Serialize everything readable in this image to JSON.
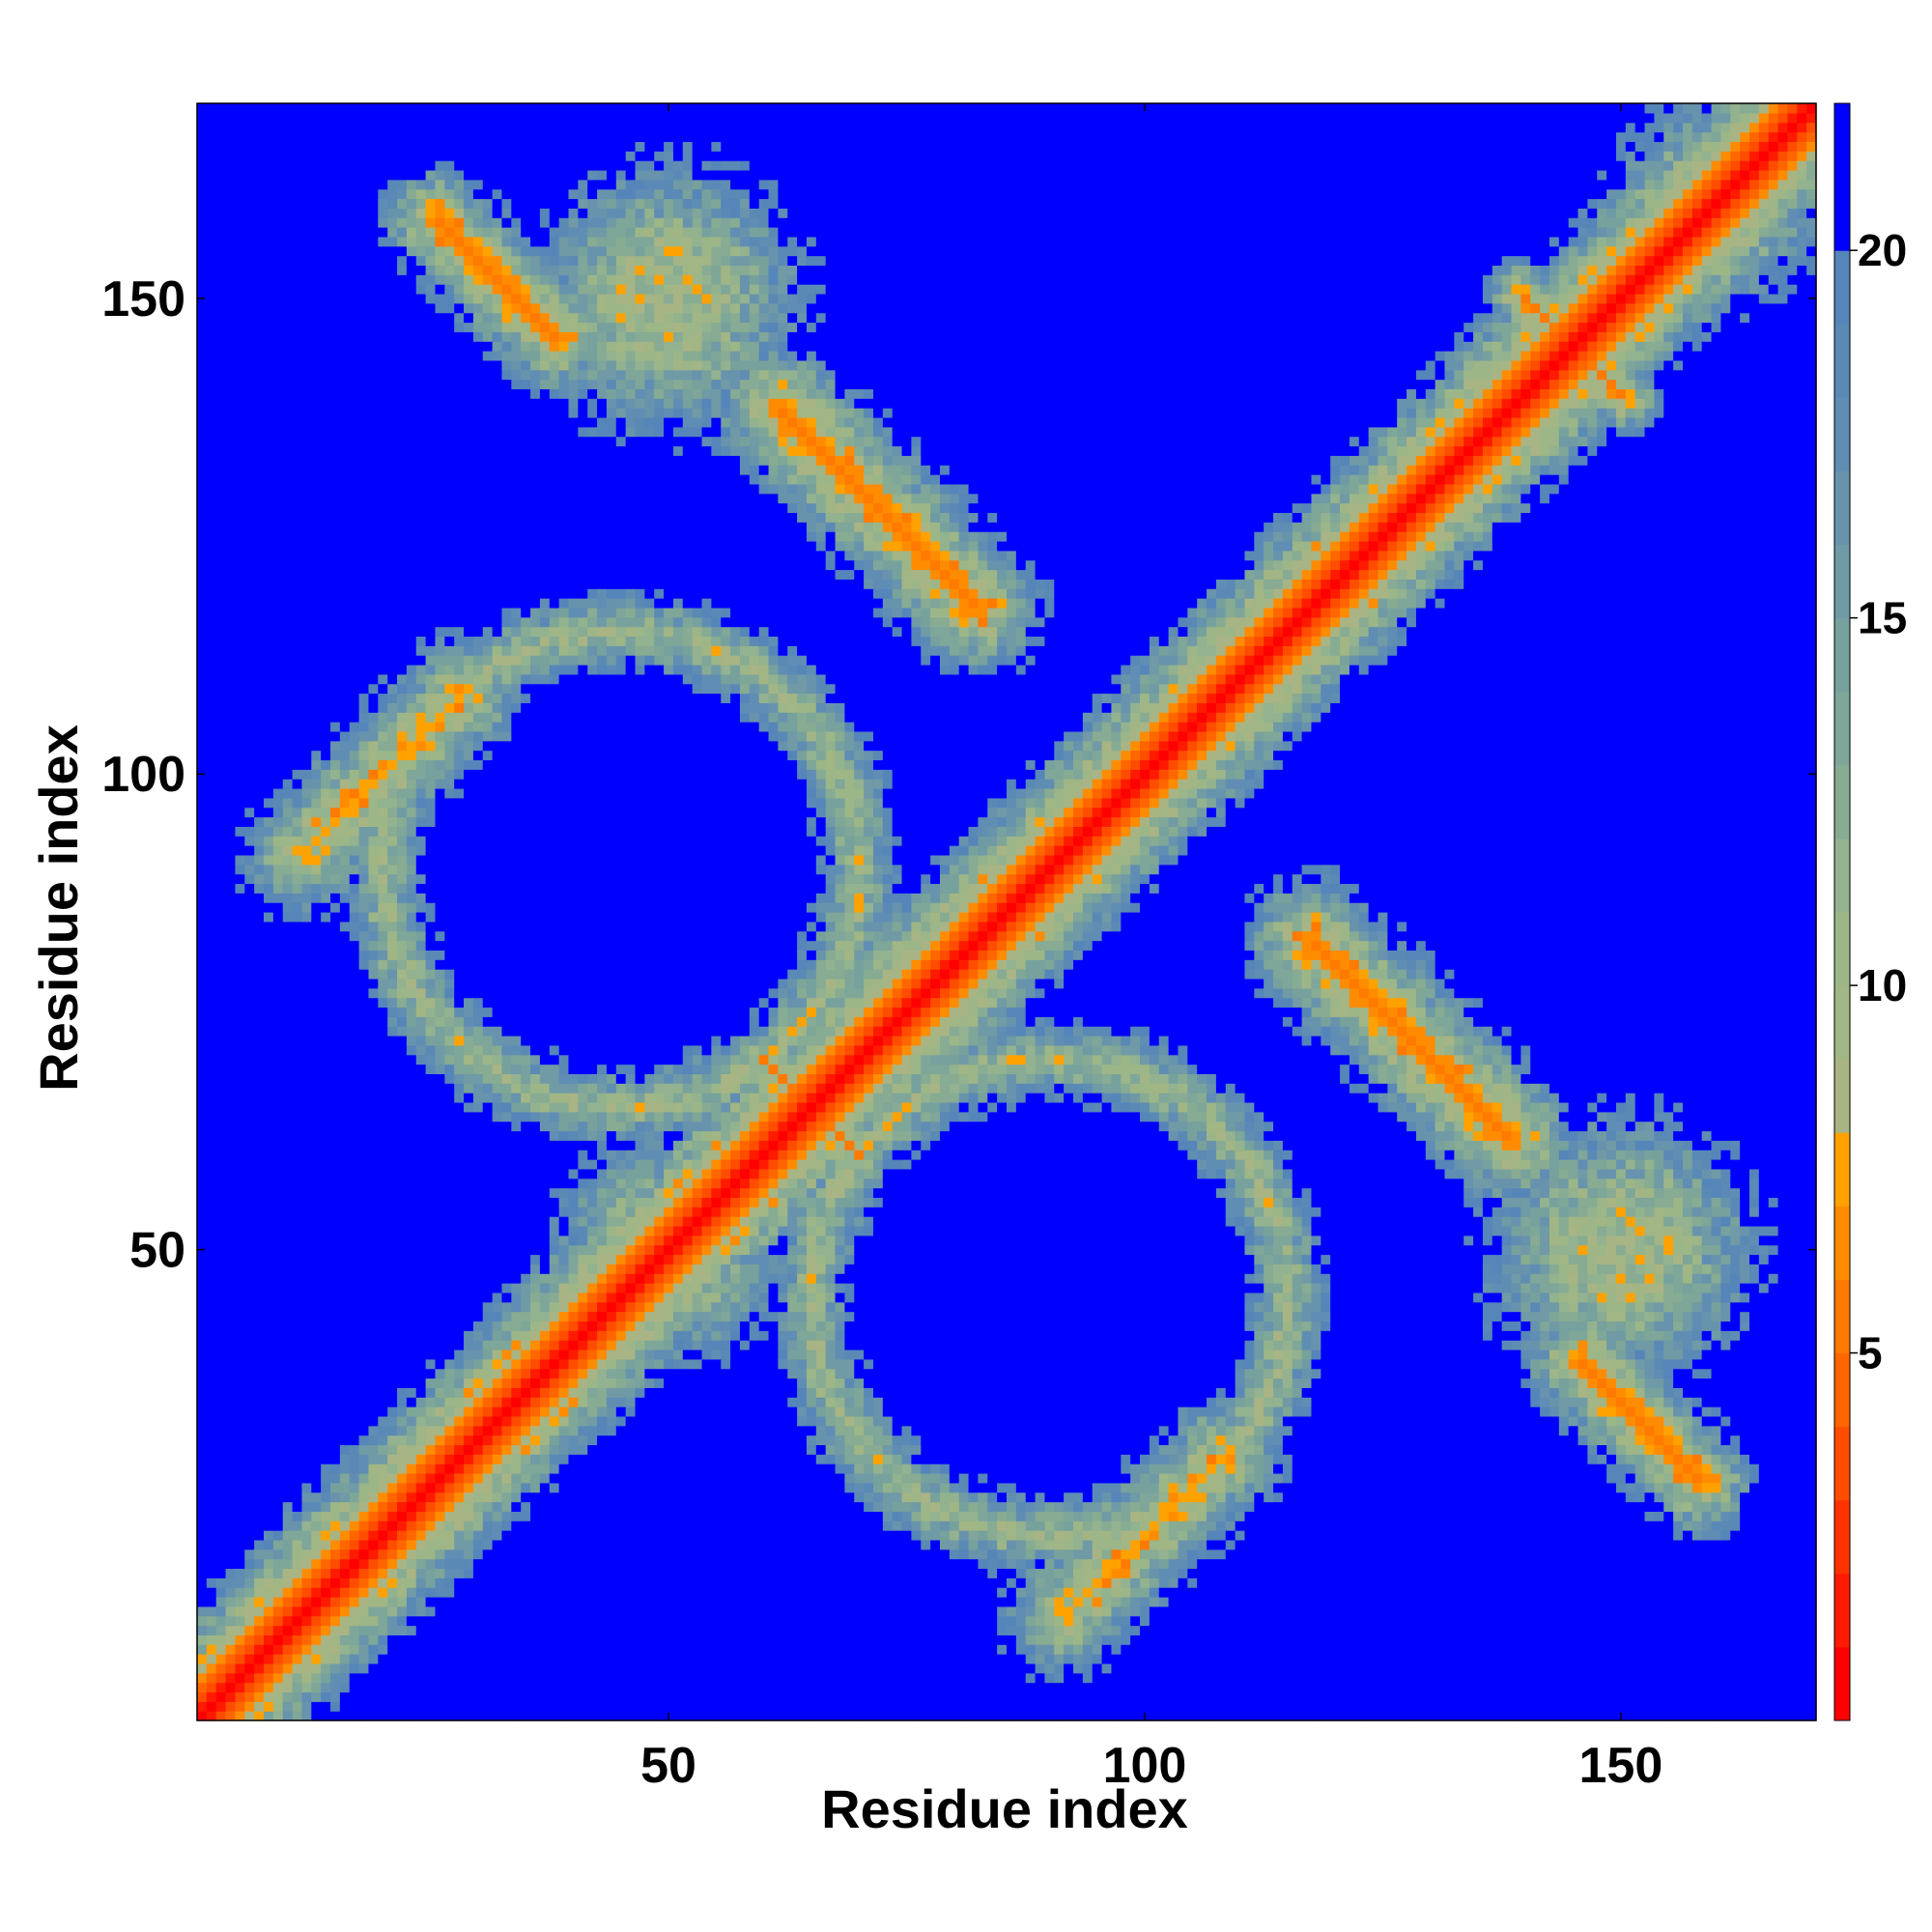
{
  "chart_data": {
    "type": "heatmap",
    "title": "",
    "xlabel": "Residue index",
    "ylabel": "Residue index",
    "n_residues": 170,
    "xlim": [
      1,
      170
    ],
    "ylim": [
      1,
      170
    ],
    "x_ticks": [
      50,
      100,
      150
    ],
    "y_ticks": [
      50,
      100,
      150
    ],
    "x_tick_labels": [
      "50",
      "100",
      "150"
    ],
    "y_tick_labels": [
      "50",
      "100",
      "150"
    ],
    "colorbar": {
      "range": [
        0,
        22
      ],
      "ticks": [
        5,
        10,
        15,
        20
      ],
      "tick_labels": [
        "5",
        "10",
        "15",
        "20"
      ],
      "bands": [
        {
          "min": 0,
          "max": 1,
          "color": "#ff0000"
        },
        {
          "min": 1,
          "max": 2,
          "color": "#ff1a00"
        },
        {
          "min": 2,
          "max": 3,
          "color": "#ff3300"
        },
        {
          "min": 3,
          "max": 4,
          "color": "#ff4d00"
        },
        {
          "min": 4,
          "max": 5,
          "color": "#ff6600"
        },
        {
          "min": 5,
          "max": 6,
          "color": "#ff7a00"
        },
        {
          "min": 6,
          "max": 7,
          "color": "#ff8c00"
        },
        {
          "min": 7,
          "max": 8,
          "color": "#ffa200"
        },
        {
          "min": 8,
          "max": 9,
          "color": "#a9b484"
        },
        {
          "min": 9,
          "max": 10,
          "color": "#a2b584"
        },
        {
          "min": 10,
          "max": 11,
          "color": "#9cb688"
        },
        {
          "min": 11,
          "max": 12,
          "color": "#93b28f"
        },
        {
          "min": 12,
          "max": 13,
          "color": "#87ab93"
        },
        {
          "min": 13,
          "max": 14,
          "color": "#7ea699"
        },
        {
          "min": 14,
          "max": 15,
          "color": "#77a19c"
        },
        {
          "min": 15,
          "max": 16,
          "color": "#6f9aa6"
        },
        {
          "min": 16,
          "max": 17,
          "color": "#6893ad"
        },
        {
          "min": 17,
          "max": 18,
          "color": "#608db3"
        },
        {
          "min": 18,
          "max": 19,
          "color": "#5a89b6"
        },
        {
          "min": 19,
          "max": 20,
          "color": "#5585b9"
        },
        {
          "min": 20,
          "max": 22,
          "color": "#0000ff"
        }
      ]
    },
    "contact_features": [
      {
        "kind": "diagonal",
        "from": 1,
        "to": 170,
        "width": 7
      },
      {
        "kind": "anti-parallel",
        "center": [
          65,
          65
        ],
        "length": 14,
        "width": 3
      },
      {
        "kind": "anti-parallel",
        "center": [
          32,
          152
        ],
        "length": 18,
        "width": 5
      },
      {
        "kind": "anti-parallel",
        "center": [
          72,
          128
        ],
        "length": 30,
        "width": 6
      },
      {
        "kind": "anti-parallel",
        "center": [
          128,
          72
        ],
        "length": 30,
        "width": 6
      },
      {
        "kind": "anti-parallel",
        "center": [
          145,
          145
        ],
        "length": 16,
        "width": 3
      },
      {
        "kind": "parallel",
        "center": [
          20,
          100
        ],
        "length": 24,
        "width": 6
      },
      {
        "kind": "parallel",
        "center": [
          100,
          20
        ],
        "length": 24,
        "width": 6
      },
      {
        "kind": "anti-parallel",
        "center": [
          152,
          32
        ],
        "length": 18,
        "width": 5
      },
      {
        "kind": "loop-ring",
        "center": [
          45,
          90
        ],
        "radius": 25,
        "width": 4
      },
      {
        "kind": "loop-ring",
        "center": [
          90,
          45
        ],
        "radius": 25,
        "width": 4
      },
      {
        "kind": "patch",
        "center": [
          150,
          50
        ],
        "radius": 12
      },
      {
        "kind": "patch",
        "center": [
          50,
          150
        ],
        "radius": 12
      },
      {
        "kind": "patch",
        "center": [
          50,
          50
        ],
        "radius": 10
      },
      {
        "kind": "patch",
        "center": [
          160,
          160
        ],
        "radius": 9
      }
    ]
  }
}
